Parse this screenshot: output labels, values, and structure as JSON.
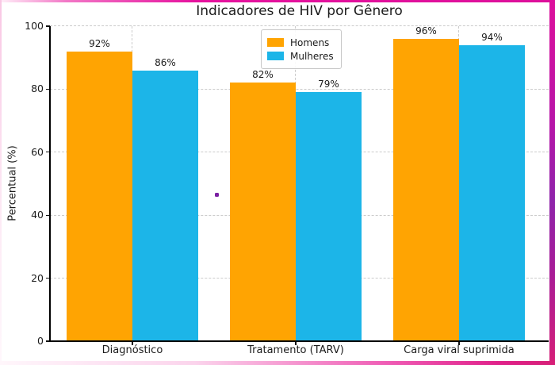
{
  "chart_data": {
    "type": "bar",
    "title": "Indicadores de HIV por Gênero",
    "xlabel": "",
    "ylabel": "Percentual (%)",
    "categories": [
      "Diagnóstico",
      "Tratamento (TARV)",
      "Carga viral suprimida"
    ],
    "series": [
      {
        "name": "Homens",
        "color": "#FFA402",
        "values": [
          92,
          82,
          96
        ]
      },
      {
        "name": "Mulheres",
        "color": "#1CB5E8",
        "values": [
          86,
          79,
          94
        ]
      }
    ],
    "value_label_suffix": "%",
    "value_labels": [
      [
        "92%",
        "82%",
        "96%"
      ],
      [
        "86%",
        "79%",
        "94%"
      ]
    ],
    "ylim": [
      0,
      100
    ],
    "yticks": [
      0,
      20,
      40,
      60,
      80,
      100
    ],
    "grid": "dashed",
    "legend_position": "upper center inside plot"
  },
  "colors": {
    "bar_homens": "#FFA402",
    "bar_mulheres": "#1CB5E8",
    "grid": "#CBCBCB",
    "axis": "#000000",
    "text": "#1B1B1B",
    "artifact_dot": "#7A1FA2",
    "frame_magenta": "#E6129E",
    "frame_purple": "#8E24AA",
    "frame_pink": "#FBD4EC"
  },
  "artifact_dot": {
    "description": "small purple dot artifact inside plot area"
  }
}
